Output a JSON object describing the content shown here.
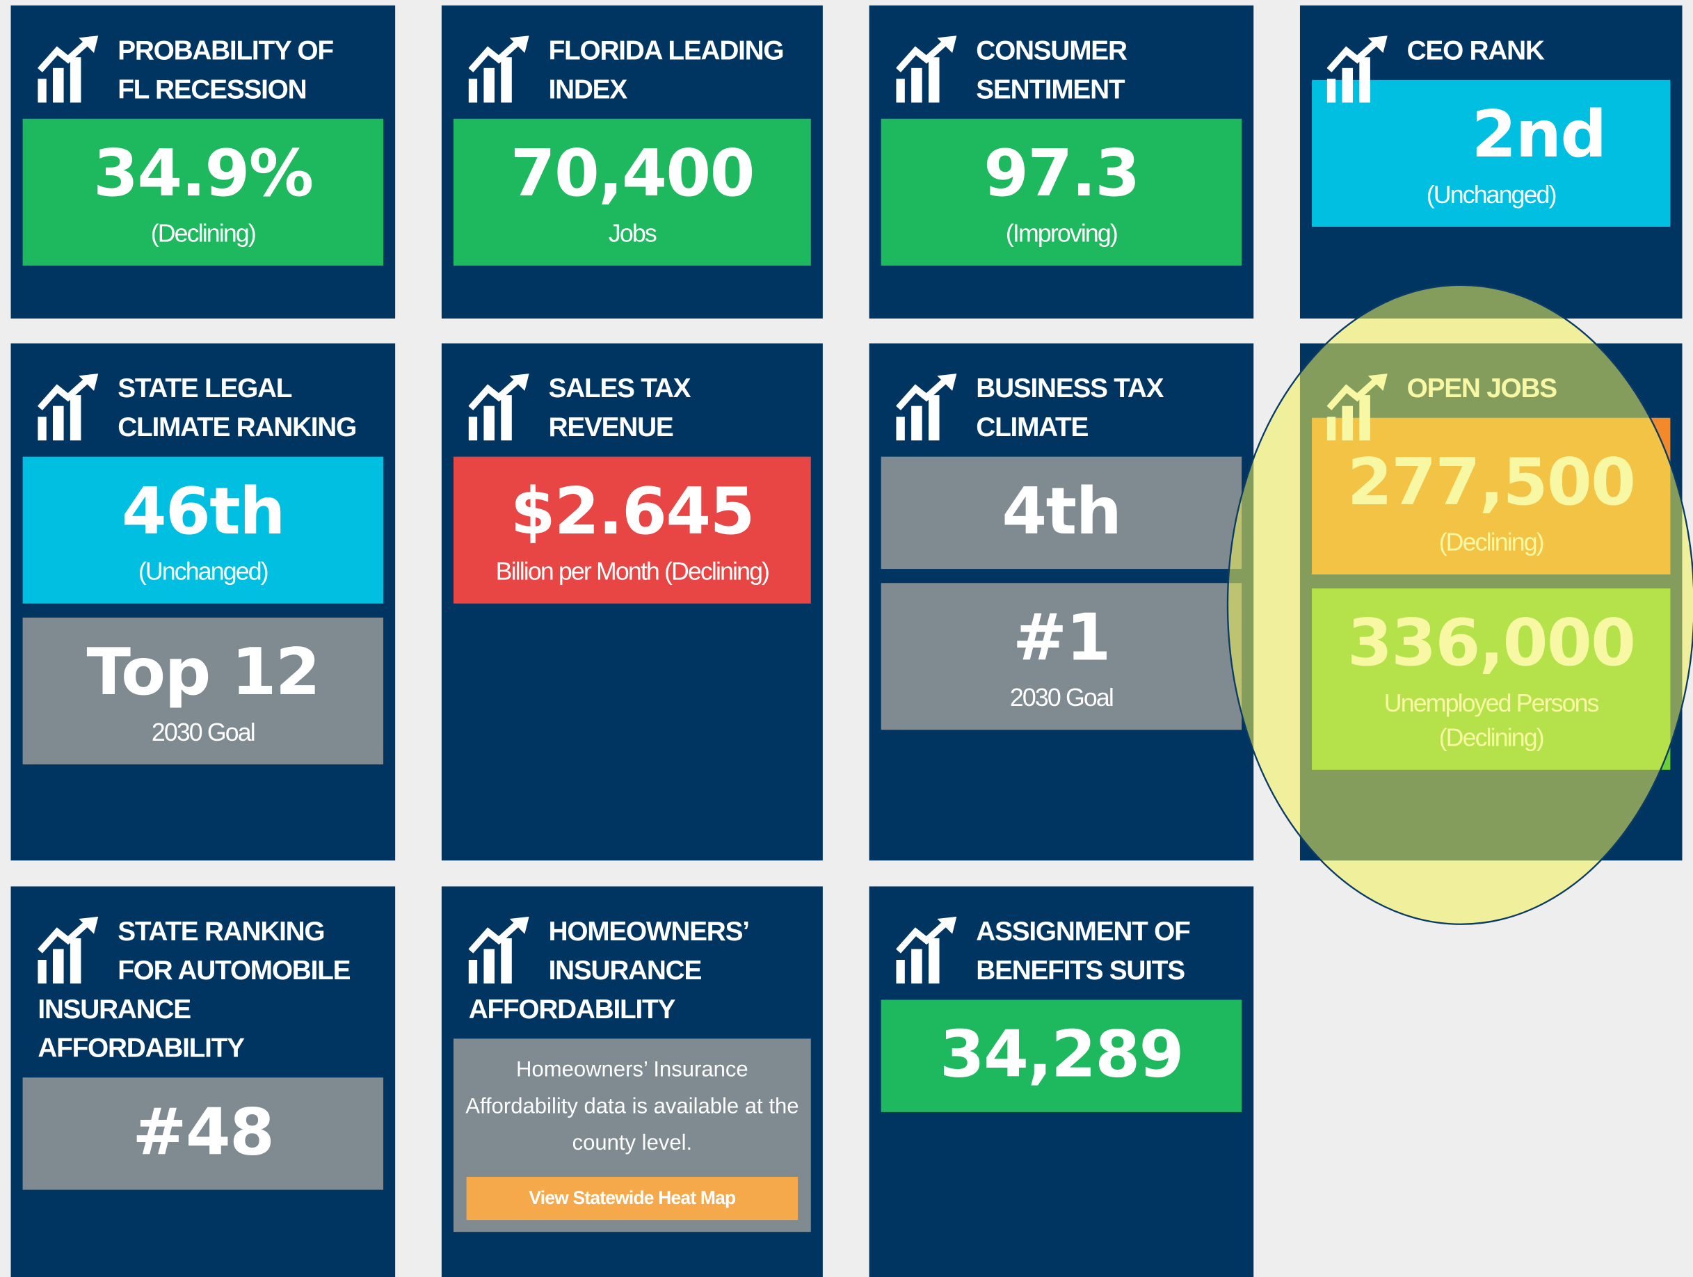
{
  "tiles": [
    {
      "title": [
        "PROBABILITY OF",
        "FL RECESSION"
      ],
      "boxes": [
        {
          "value": "34.9%",
          "caption": [
            "(Declining)"
          ],
          "color": "#1eb85e"
        }
      ]
    },
    {
      "title": [
        "FLORIDA LEADING",
        "INDEX"
      ],
      "boxes": [
        {
          "value": "70,400",
          "caption": [
            "Jobs"
          ],
          "color": "#1eb85e"
        }
      ]
    },
    {
      "title": [
        "CONSUMER",
        "SENTIMENT"
      ],
      "boxes": [
        {
          "value": "97.3",
          "caption": [
            "(Improving)"
          ],
          "color": "#1eb85e"
        }
      ]
    },
    {
      "title": [
        "CEO RANK"
      ],
      "boxes": [
        {
          "value": "2nd",
          "caption": [
            "(Unchanged)"
          ],
          "color": "#00bfe0"
        }
      ]
    },
    {
      "title": [
        "STATE LEGAL",
        "CLIMATE RANKING"
      ],
      "boxes": [
        {
          "value": "46th",
          "caption": [
            "(Unchanged)"
          ],
          "color": "#00bfe0"
        },
        {
          "value": "Top 12",
          "caption": [
            "2030 Goal"
          ],
          "color": "#7f8a91"
        }
      ]
    },
    {
      "title": [
        "SALES TAX",
        "REVENUE"
      ],
      "boxes": [
        {
          "value": "$2.645",
          "caption": [
            "Billion per Month (Declining)"
          ],
          "color": "#e84545"
        }
      ]
    },
    {
      "title": [
        "BUSINESS TAX",
        "CLIMATE"
      ],
      "boxes": [
        {
          "value": "4th",
          "caption": [],
          "color": "#7f8a91"
        },
        {
          "value": "#1",
          "caption": [
            "2030 Goal"
          ],
          "color": "#7f8a91"
        }
      ]
    },
    {
      "title": [
        "OPEN JOBS"
      ],
      "boxes": [
        {
          "value": "277,500",
          "caption": [
            "(Declining)"
          ],
          "color": "#f28a2b"
        },
        {
          "value": "336,000",
          "caption": [
            "Unemployed Persons",
            "(Declining)"
          ],
          "color": "#6ccf3a"
        }
      ]
    },
    {
      "title": [
        "STATE RANKING",
        "FOR AUTOMOBILE",
        "INSURANCE",
        "AFFORDABILITY"
      ],
      "boxes": [
        {
          "value": "#48",
          "caption": [],
          "color": "#7f8a91"
        }
      ]
    },
    {
      "title": [
        "HOMEOWNERS’",
        "INSURANCE",
        "AFFORDABILITY"
      ],
      "boxes": [],
      "note": {
        "text": "Homeowners’ Insurance Affordability data is available at the county level.",
        "button": "View Statewide Heat Map"
      }
    },
    {
      "title": [
        "ASSIGNMENT OF",
        "BENEFITS SUITS"
      ],
      "boxes": [
        {
          "value": "34,289",
          "caption": [],
          "color": "#1eb85e"
        }
      ]
    }
  ]
}
